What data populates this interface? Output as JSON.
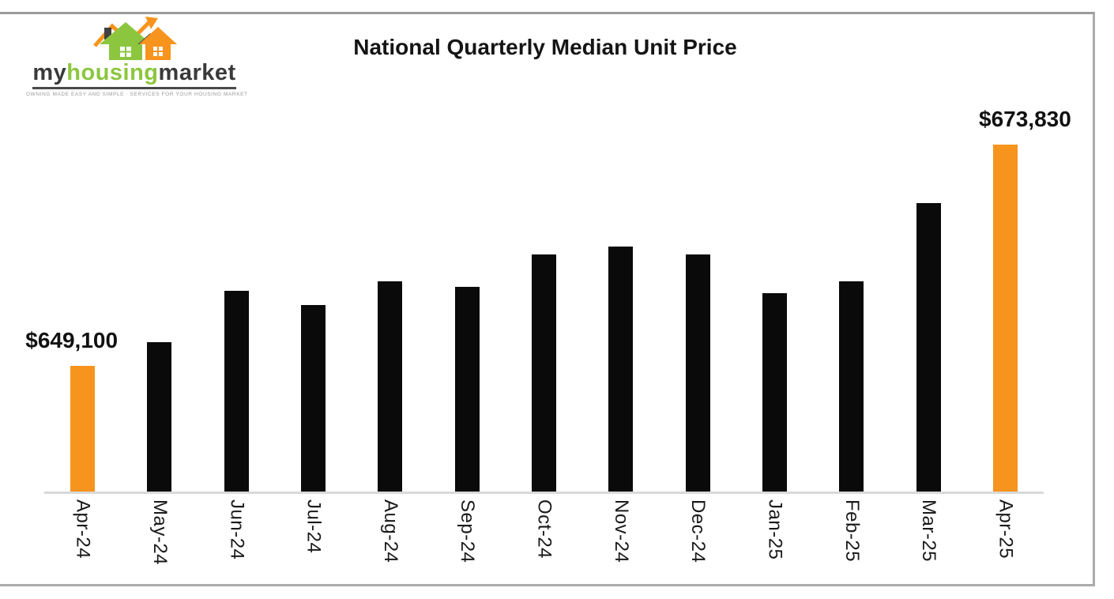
{
  "logo": {
    "brand_my": "my",
    "brand_housing": "housing",
    "brand_market": "market",
    "tagline": "OWNING MADE EASY AND SIMPLE · SERVICES FOR YOUR HOUSING MARKET",
    "colors": {
      "green": "#8CC63F",
      "orange": "#F7941D",
      "dark": "#3a3a3a"
    }
  },
  "chart_data": {
    "type": "bar",
    "title": "National Quarterly Median Unit Price",
    "categories": [
      "Apr-24",
      "May-24",
      "Jun-24",
      "Jul-24",
      "Aug-24",
      "Sep-24",
      "Oct-24",
      "Nov-24",
      "Dec-24",
      "Jan-25",
      "Feb-25",
      "Mar-25",
      "Apr-25"
    ],
    "values": [
      649100,
      651800,
      657500,
      655900,
      658600,
      657900,
      661600,
      662400,
      661600,
      657200,
      658600,
      667300,
      673830
    ],
    "values_estimated_except": [
      "Apr-24",
      "Apr-25"
    ],
    "data_labels": {
      "0": "$649,100",
      "12": "$673,830"
    },
    "highlight_indices": [
      0,
      12
    ],
    "bar_color": "#0a0a0a",
    "highlight_color": "#F7941D",
    "axis_line_color": "#d9d9d9",
    "axis_min": 635000,
    "axis_max": 680000,
    "xlabel": "",
    "ylabel": "",
    "gridlines": false,
    "legend": "none",
    "x_label_rotation": "90deg-read-down"
  }
}
